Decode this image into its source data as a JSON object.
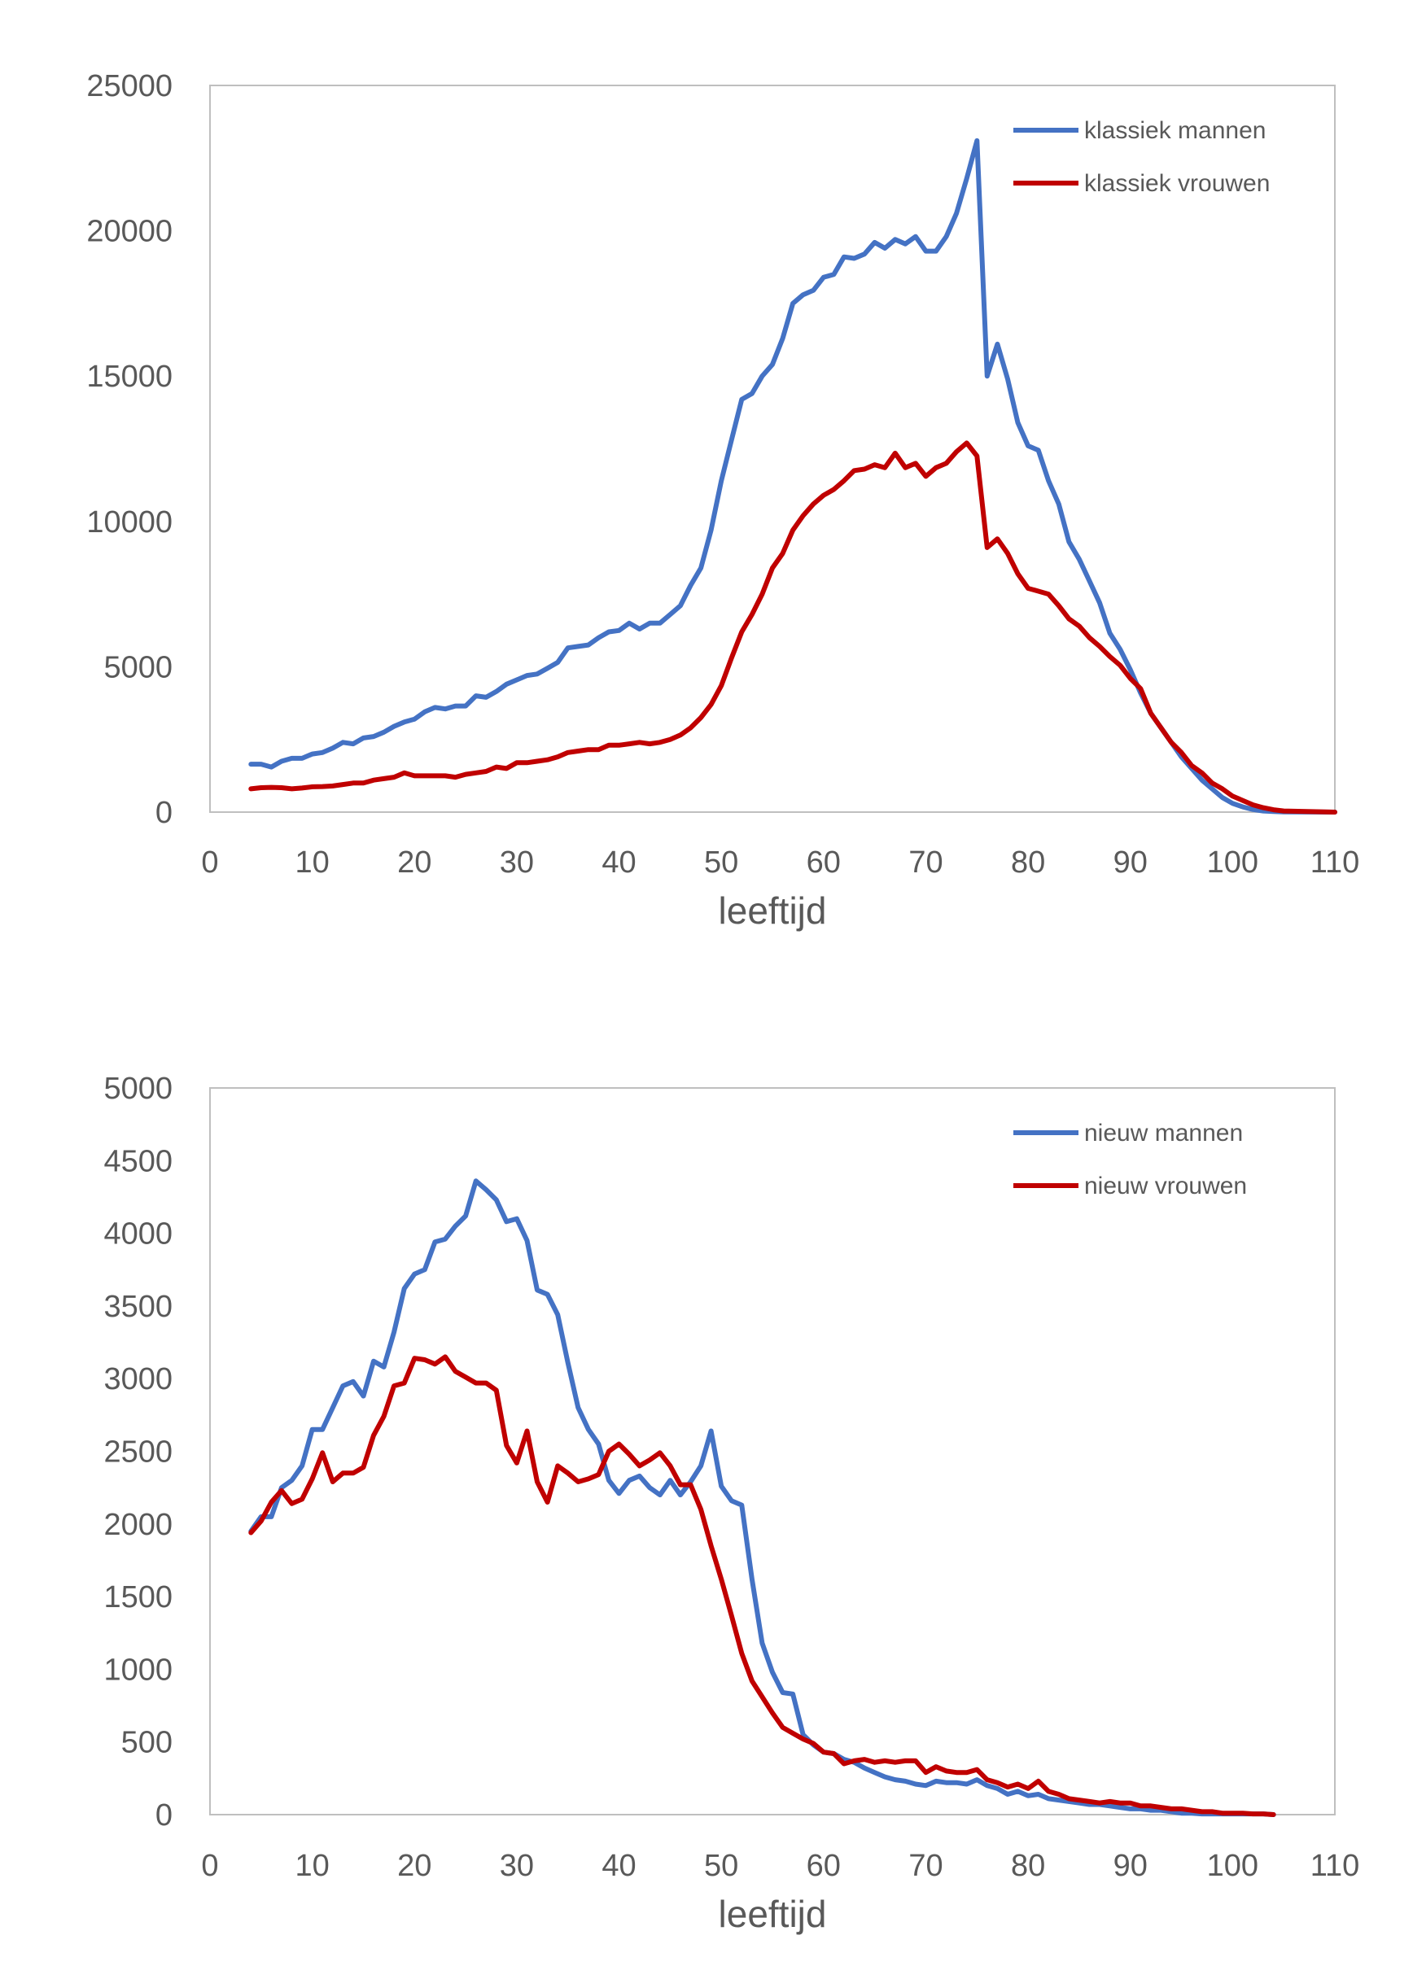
{
  "chart_data": [
    {
      "type": "line",
      "title": "",
      "xlabel": "leeftijd",
      "ylabel": "",
      "xlim": [
        0,
        110
      ],
      "ylim": [
        0,
        25000
      ],
      "x_ticks": [
        "0",
        "10",
        "20",
        "30",
        "40",
        "50",
        "60",
        "70",
        "80",
        "90",
        "100",
        "110"
      ],
      "y_ticks": [
        "0",
        "5000",
        "10000",
        "15000",
        "20000",
        "25000"
      ],
      "grid": false,
      "legend_position": "top-right",
      "series": [
        {
          "name": "klassiek mannen",
          "color": "#4472C4",
          "x": [
            4,
            5,
            6,
            7,
            8,
            9,
            10,
            11,
            12,
            13,
            14,
            15,
            16,
            17,
            18,
            19,
            20,
            21,
            22,
            23,
            24,
            25,
            26,
            27,
            28,
            29,
            30,
            31,
            32,
            33,
            34,
            35,
            36,
            37,
            38,
            39,
            40,
            41,
            42,
            43,
            44,
            45,
            46,
            47,
            48,
            49,
            50,
            51,
            52,
            53,
            54,
            55,
            56,
            57,
            58,
            59,
            60,
            61,
            62,
            63,
            64,
            65,
            66,
            67,
            68,
            69,
            70,
            71,
            72,
            73,
            74,
            75,
            76,
            77,
            78,
            79,
            80,
            81,
            82,
            83,
            84,
            85,
            86,
            87,
            88,
            89,
            90,
            91,
            92,
            93,
            94,
            95,
            96,
            97,
            98,
            99,
            100,
            101,
            102,
            103,
            104,
            105,
            110
          ],
          "values": [
            1650,
            1650,
            1550,
            1750,
            1850,
            1850,
            2000,
            2050,
            2200,
            2400,
            2350,
            2550,
            2600,
            2750,
            2950,
            3100,
            3200,
            3450,
            3600,
            3550,
            3650,
            3650,
            4000,
            3950,
            4150,
            4400,
            4550,
            4700,
            4750,
            4950,
            5150,
            5650,
            5700,
            5750,
            6000,
            6200,
            6250,
            6500,
            6300,
            6500,
            6500,
            6800,
            7100,
            7800,
            8400,
            9700,
            11400,
            12800,
            14200,
            14400,
            15000,
            15400,
            16300,
            17500,
            17800,
            17950,
            18400,
            18500,
            19100,
            19050,
            19200,
            19600,
            19400,
            19700,
            19550,
            19800,
            19300,
            19300,
            19800,
            20600,
            21800,
            23100,
            15000,
            16100,
            14900,
            13400,
            12600,
            12450,
            11400,
            10600,
            9300,
            8700,
            7950,
            7200,
            6150,
            5600,
            4900,
            4100,
            3400,
            2900,
            2400,
            1900,
            1500,
            1100,
            800,
            500,
            300,
            180,
            90,
            40,
            20,
            5,
            0
          ]
        },
        {
          "name": "klassiek vrouwen",
          "color": "#C00000",
          "x": [
            4,
            5,
            6,
            7,
            8,
            9,
            10,
            11,
            12,
            13,
            14,
            15,
            16,
            17,
            18,
            19,
            20,
            21,
            22,
            23,
            24,
            25,
            26,
            27,
            28,
            29,
            30,
            31,
            32,
            33,
            34,
            35,
            36,
            37,
            38,
            39,
            40,
            41,
            42,
            43,
            44,
            45,
            46,
            47,
            48,
            49,
            50,
            51,
            52,
            53,
            54,
            55,
            56,
            57,
            58,
            59,
            60,
            61,
            62,
            63,
            64,
            65,
            66,
            67,
            68,
            69,
            70,
            71,
            72,
            73,
            74,
            75,
            76,
            77,
            78,
            79,
            80,
            81,
            82,
            83,
            84,
            85,
            86,
            87,
            88,
            89,
            90,
            91,
            92,
            93,
            94,
            95,
            96,
            97,
            98,
            99,
            100,
            101,
            102,
            103,
            104,
            105,
            110
          ],
          "values": [
            800,
            840,
            850,
            840,
            800,
            830,
            870,
            880,
            900,
            950,
            1000,
            1000,
            1100,
            1150,
            1200,
            1350,
            1250,
            1250,
            1250,
            1250,
            1200,
            1300,
            1350,
            1400,
            1550,
            1500,
            1700,
            1700,
            1750,
            1800,
            1900,
            2050,
            2100,
            2150,
            2150,
            2300,
            2300,
            2350,
            2400,
            2350,
            2400,
            2500,
            2650,
            2900,
            3250,
            3700,
            4350,
            5300,
            6200,
            6800,
            7500,
            8400,
            8900,
            9700,
            10200,
            10600,
            10900,
            11100,
            11400,
            11750,
            11800,
            11950,
            11850,
            12350,
            11850,
            12000,
            11550,
            11850,
            12000,
            12400,
            12700,
            12250,
            9100,
            9400,
            8900,
            8200,
            7700,
            7600,
            7500,
            7100,
            6650,
            6400,
            6000,
            5700,
            5350,
            5050,
            4600,
            4250,
            3400,
            2900,
            2400,
            2050,
            1600,
            1350,
            1000,
            800,
            550,
            400,
            250,
            150,
            80,
            40,
            0
          ]
        }
      ]
    },
    {
      "type": "line",
      "title": "",
      "xlabel": "leeftijd",
      "ylabel": "",
      "xlim": [
        0,
        110
      ],
      "ylim": [
        0,
        5000
      ],
      "x_ticks": [
        "0",
        "10",
        "20",
        "30",
        "40",
        "50",
        "60",
        "70",
        "80",
        "90",
        "100",
        "110"
      ],
      "y_ticks": [
        "0",
        "500",
        "1000",
        "1500",
        "2000",
        "2500",
        "3000",
        "3500",
        "4000",
        "4500",
        "5000"
      ],
      "grid": false,
      "legend_position": "top-right",
      "series": [
        {
          "name": "nieuw mannen",
          "color": "#4472C4",
          "x": [
            4,
            5,
            6,
            7,
            8,
            9,
            10,
            11,
            12,
            13,
            14,
            15,
            16,
            17,
            18,
            19,
            20,
            21,
            22,
            23,
            24,
            25,
            26,
            27,
            28,
            29,
            30,
            31,
            32,
            33,
            34,
            35,
            36,
            37,
            38,
            39,
            40,
            41,
            42,
            43,
            44,
            45,
            46,
            47,
            48,
            49,
            50,
            51,
            52,
            53,
            54,
            55,
            56,
            57,
            58,
            59,
            60,
            61,
            62,
            63,
            64,
            65,
            66,
            67,
            68,
            69,
            70,
            71,
            72,
            73,
            74,
            75,
            76,
            77,
            78,
            79,
            80,
            81,
            82,
            83,
            84,
            85,
            86,
            87,
            88,
            89,
            90,
            91,
            92,
            93,
            94,
            95,
            96,
            97,
            98,
            99,
            100,
            101,
            102,
            103,
            104
          ],
          "values": [
            1950,
            2050,
            2050,
            2250,
            2300,
            2400,
            2650,
            2650,
            2800,
            2950,
            2980,
            2880,
            3120,
            3080,
            3320,
            3620,
            3720,
            3750,
            3940,
            3960,
            4050,
            4120,
            4360,
            4300,
            4230,
            4080,
            4100,
            3950,
            3610,
            3580,
            3440,
            3110,
            2800,
            2650,
            2550,
            2300,
            2210,
            2300,
            2330,
            2250,
            2200,
            2300,
            2200,
            2290,
            2400,
            2640,
            2260,
            2160,
            2130,
            1620,
            1180,
            980,
            840,
            830,
            550,
            480,
            430,
            420,
            380,
            360,
            320,
            290,
            260,
            240,
            230,
            210,
            200,
            230,
            220,
            220,
            210,
            240,
            200,
            180,
            140,
            160,
            130,
            140,
            110,
            100,
            90,
            80,
            70,
            70,
            60,
            50,
            40,
            40,
            30,
            30,
            20,
            10,
            10,
            5,
            5,
            5,
            5,
            5,
            5,
            5,
            0
          ]
        },
        {
          "name": "nieuw vrouwen",
          "color": "#C00000",
          "x": [
            4,
            5,
            6,
            7,
            8,
            9,
            10,
            11,
            12,
            13,
            14,
            15,
            16,
            17,
            18,
            19,
            20,
            21,
            22,
            23,
            24,
            25,
            26,
            27,
            28,
            29,
            30,
            31,
            32,
            33,
            34,
            35,
            36,
            37,
            38,
            39,
            40,
            41,
            42,
            43,
            44,
            45,
            46,
            47,
            48,
            49,
            50,
            51,
            52,
            53,
            54,
            55,
            56,
            57,
            58,
            59,
            60,
            61,
            62,
            63,
            64,
            65,
            66,
            67,
            68,
            69,
            70,
            71,
            72,
            73,
            74,
            75,
            76,
            77,
            78,
            79,
            80,
            81,
            82,
            83,
            84,
            85,
            86,
            87,
            88,
            89,
            90,
            91,
            92,
            93,
            94,
            95,
            96,
            97,
            98,
            99,
            100,
            101,
            102,
            103,
            104
          ],
          "values": [
            1940,
            2020,
            2150,
            2230,
            2140,
            2170,
            2310,
            2490,
            2290,
            2350,
            2350,
            2390,
            2610,
            2740,
            2950,
            2970,
            3140,
            3130,
            3100,
            3150,
            3050,
            3010,
            2970,
            2970,
            2920,
            2540,
            2420,
            2640,
            2290,
            2150,
            2400,
            2350,
            2290,
            2310,
            2340,
            2500,
            2550,
            2480,
            2400,
            2440,
            2490,
            2400,
            2270,
            2270,
            2100,
            1850,
            1620,
            1370,
            1110,
            920,
            810,
            700,
            600,
            560,
            520,
            490,
            430,
            420,
            350,
            370,
            380,
            360,
            370,
            360,
            370,
            370,
            290,
            330,
            300,
            290,
            290,
            310,
            240,
            220,
            190,
            210,
            180,
            230,
            160,
            140,
            110,
            100,
            90,
            80,
            90,
            80,
            80,
            60,
            60,
            50,
            40,
            40,
            30,
            20,
            20,
            10,
            10,
            10,
            5,
            5,
            0
          ]
        }
      ]
    }
  ]
}
